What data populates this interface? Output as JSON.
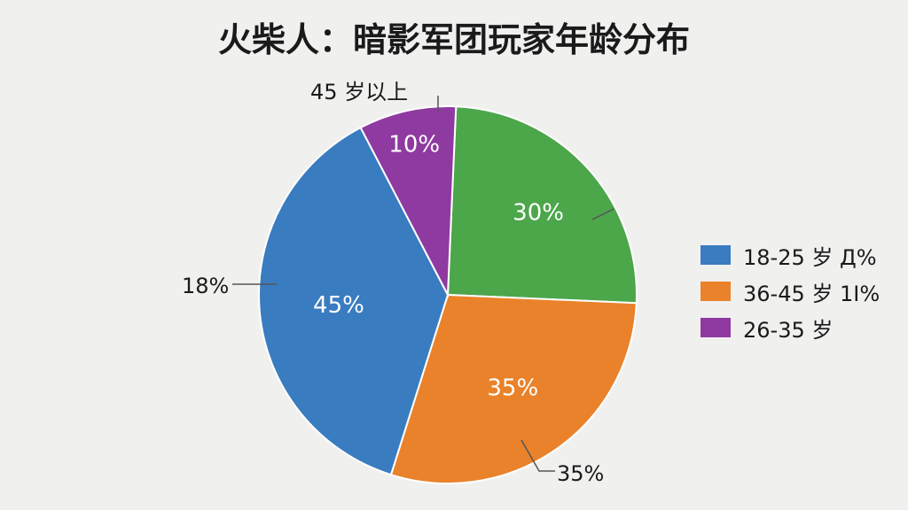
{
  "chart_data": {
    "type": "pie",
    "title": "火柴人：暗影军团玩家年龄分布",
    "slices": [
      {
        "label": "30%",
        "value": 30,
        "color": "#4ca64a"
      },
      {
        "label": "35%",
        "value": 35,
        "color": "#e9822a"
      },
      {
        "label": "45%",
        "value": 45,
        "color": "#3a7cc0"
      },
      {
        "label": "10%",
        "value": 10,
        "color": "#8f3aa0"
      }
    ],
    "callouts": [
      "45 岁以上",
      "18%",
      "35%"
    ],
    "legend": [
      {
        "label": "18-25 岁 Д%",
        "color": "#3a7cc0"
      },
      {
        "label": "36-45 岁 1Ӏ%",
        "color": "#e9822a"
      },
      {
        "label": "26-35 岁",
        "color": "#8f3aa0"
      }
    ],
    "legend_position": "right"
  }
}
